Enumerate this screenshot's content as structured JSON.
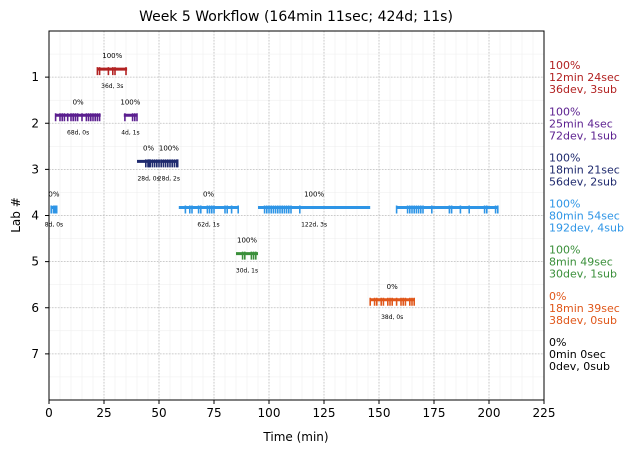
{
  "chart_data": {
    "type": "timeline",
    "title": "Week 5 Workflow (164min 11sec; 424d; 11s)",
    "xlabel": "Time (min)",
    "ylabel": "Lab #",
    "xlim": [
      0,
      225
    ],
    "ylim": [
      8,
      0
    ],
    "xticks": [
      0,
      25,
      50,
      75,
      100,
      125,
      150,
      175,
      200,
      225
    ],
    "yticks": [
      1,
      2,
      3,
      4,
      5,
      6,
      7
    ],
    "grid": true,
    "labs": [
      {
        "lab": 1,
        "color": "#b22222",
        "summary": [
          "100%",
          "12min 24sec",
          "36dev, 3sub"
        ],
        "submissions": [
          {
            "start": 22,
            "end": 35.5,
            "pct": "100%",
            "info": "36d, 3s",
            "ticks": [
              22,
              23,
              27,
              29,
              30,
              35
            ]
          }
        ]
      },
      {
        "lab": 2,
        "color": "#5b1f8f",
        "summary": [
          "100%",
          "25min 4sec",
          "72dev, 1sub"
        ],
        "submissions": [
          {
            "start": 3,
            "end": 23.5,
            "pct": "0%",
            "info": "68d, 0s",
            "ticks": [
              3,
              5,
              6,
              7,
              8.5,
              10,
              11,
              12,
              13,
              15,
              17,
              18,
              19,
              20,
              21,
              22,
              23
            ]
          },
          {
            "start": 34,
            "end": 40,
            "pct": "100%",
            "info": "4d, 1s",
            "ticks": [
              34.5,
              38,
              39,
              40
            ]
          }
        ]
      },
      {
        "lab": 3,
        "color": "#1f2a6e",
        "summary": [
          "100%",
          "18min 21sec",
          "56dev, 2sub"
        ],
        "submissions": [
          {
            "start": 40,
            "end": 50.5,
            "pct": "0%",
            "info": "28d, 0s",
            "ticks": [
              44,
              45,
              45.5,
              46,
              47,
              48,
              49,
              50
            ]
          },
          {
            "start": 50.5,
            "end": 58.5,
            "pct": "100%",
            "info": "28d, 2s",
            "ticks": [
              51,
              52,
              53,
              54,
              55,
              56,
              57,
              58,
              58.5
            ]
          }
        ]
      },
      {
        "lab": 4,
        "color": "#2e95e6",
        "summary": [
          "100%",
          "80min 54sec",
          "192dev, 4sub"
        ],
        "submissions": [
          {
            "start": 1,
            "end": 3.5,
            "pct": "0%",
            "info": "8d, 0s",
            "ticks": [
              1,
              2,
              2.5,
              3,
              3.5
            ]
          },
          {
            "start": 59,
            "end": 86,
            "pct": "0%",
            "info": "62d, 1s",
            "ticks": [
              62,
              64,
              65,
              68,
              69,
              72,
              73,
              74,
              75,
              80,
              81,
              83,
              86
            ]
          },
          {
            "start": 95,
            "end": 146,
            "pct": "100%",
            "info": "122d, 3s",
            "ticks": [
              98,
              99,
              100,
              101,
              102,
              103,
              104,
              105,
              106,
              107,
              108,
              109,
              110,
              114
            ]
          },
          {
            "start": 158,
            "end": 204,
            "pct": "",
            "info": "",
            "ticks": [
              158,
              163,
              164,
              165,
              166,
              167,
              168,
              169,
              170,
              174,
              182,
              183,
              187,
              191,
              198,
              199,
              203,
              204
            ]
          }
        ]
      },
      {
        "lab": 5,
        "color": "#3a8f3a",
        "summary": [
          "100%",
          "8min 49sec",
          "30dev, 1sub"
        ],
        "submissions": [
          {
            "start": 85,
            "end": 95,
            "pct": "100%",
            "info": "30d, 1s",
            "ticks": [
              88,
              89,
              92,
              93,
              94
            ]
          }
        ]
      },
      {
        "lab": 6,
        "color": "#e0571a",
        "summary": [
          "0%",
          "18min 39sec",
          "38dev, 0sub"
        ],
        "submissions": [
          {
            "start": 146,
            "end": 166,
            "pct": "0%",
            "info": "38d, 0s",
            "ticks": [
              146,
              148,
              149,
              151,
              152,
              154,
              155,
              156,
              158,
              160,
              161,
              162,
              164,
              165,
              166
            ]
          }
        ]
      },
      {
        "lab": 7,
        "color": "#000000",
        "summary": [
          "0%",
          "0min 0sec",
          "0dev, 0sub"
        ],
        "submissions": []
      }
    ]
  }
}
